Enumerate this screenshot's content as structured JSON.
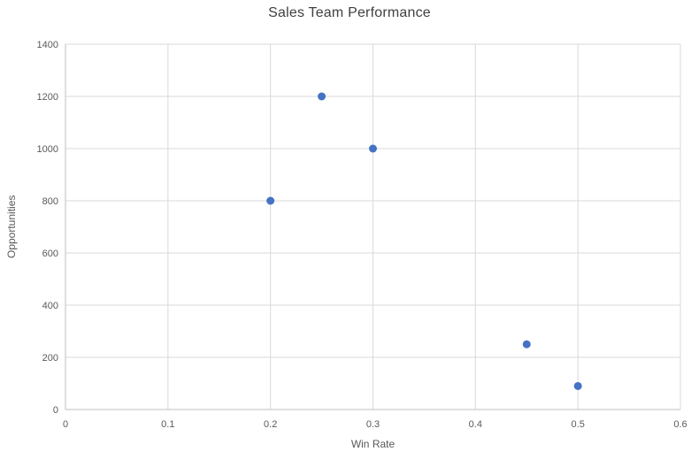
{
  "chart_data": {
    "type": "scatter",
    "title": "Sales Team Performance",
    "xlabel": "Win Rate",
    "ylabel": "Opportunities",
    "points": [
      {
        "x": 0.2,
        "y": 800
      },
      {
        "x": 0.25,
        "y": 1200
      },
      {
        "x": 0.3,
        "y": 1000
      },
      {
        "x": 0.45,
        "y": 250
      },
      {
        "x": 0.5,
        "y": 90
      }
    ],
    "xlim": [
      0,
      0.6
    ],
    "ylim": [
      0,
      1400
    ],
    "xticks": [
      0,
      0.1,
      0.2,
      0.3,
      0.4,
      0.5,
      0.6
    ],
    "xtick_labels": [
      "0",
      "0.1",
      "0.2",
      "0.3",
      "0.4",
      "0.5",
      "0.6"
    ],
    "yticks": [
      0,
      200,
      400,
      600,
      800,
      1000,
      1200,
      1400
    ],
    "ytick_labels": [
      "0",
      "200",
      "400",
      "600",
      "800",
      "1000",
      "1200",
      "1400"
    ],
    "grid": true,
    "legend": "none",
    "marker_size_px": 9,
    "colors": {
      "marker": "#4472C4",
      "gridline": "#D9D9D9",
      "axis_line": "#BFBFBF",
      "tick_label": "#595959",
      "axis_title": "#595959",
      "title": "#404040",
      "background": "#FFFFFF"
    }
  }
}
